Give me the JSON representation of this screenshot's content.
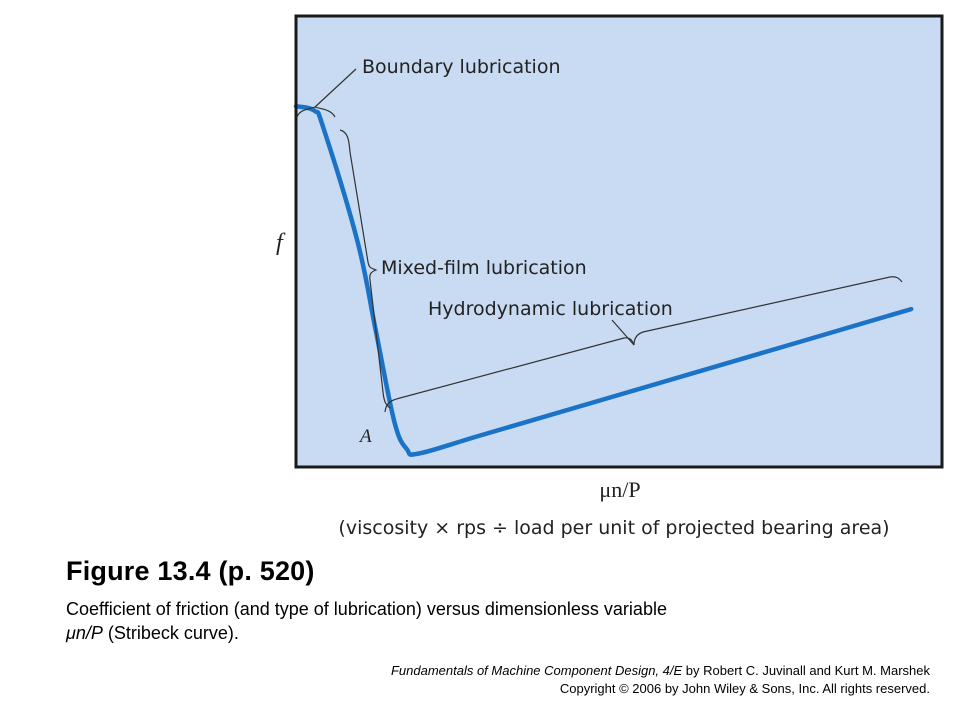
{
  "chart_data": {
    "type": "line",
    "title": "",
    "ylabel": "f",
    "xlabel": "μn/P",
    "xlabel_note": "(viscosity × rps ÷ load per unit of projected bearing area)",
    "grid": false,
    "axis_ticks": false,
    "x": [
      0,
      0.3,
      0.45,
      1.0,
      1.3,
      1.6,
      1.8,
      2.0,
      3.0,
      5.0,
      7.5,
      10.0
    ],
    "y": [
      8.0,
      7.9,
      7.5,
      5.0,
      3.0,
      1.0,
      0.4,
      0.3,
      0.7,
      1.5,
      2.5,
      3.5
    ],
    "xlim": [
      0,
      10.5
    ],
    "ylim": [
      0,
      10
    ],
    "point_label": {
      "text": "A",
      "x": 2.0,
      "y": 0.3
    },
    "regions": [
      {
        "name": "Boundary lubrication",
        "x_start": 0.0,
        "x_end": 0.4
      },
      {
        "name": "Mixed-film lubrication",
        "x_start": 0.4,
        "x_end": 2.0
      },
      {
        "name": "Hydrodynamic lubrication",
        "x_start": 2.0,
        "x_end": 10.0
      }
    ],
    "colors": {
      "plot_background": "#c8dbf2",
      "curve": "#1a73c7",
      "frame": "#1a1a1a",
      "bracket": "#333333"
    }
  },
  "figure": {
    "title": "Figure 13.4  (p. 520)",
    "caption_main": "Coefficient of friction (and type of lubrication) versus dimensionless variable",
    "caption_var": "μn/P",
    "caption_tail": " (Stribeck curve).",
    "credit_book": "Fundamentals of Machine Component Design, 4/E",
    "credit_authors": " by Robert C.  Juvinall and Kurt M. Marshek",
    "credit_copyright": "Copyright © 2006 by John Wiley & Sons, Inc.  All rights reserved."
  }
}
